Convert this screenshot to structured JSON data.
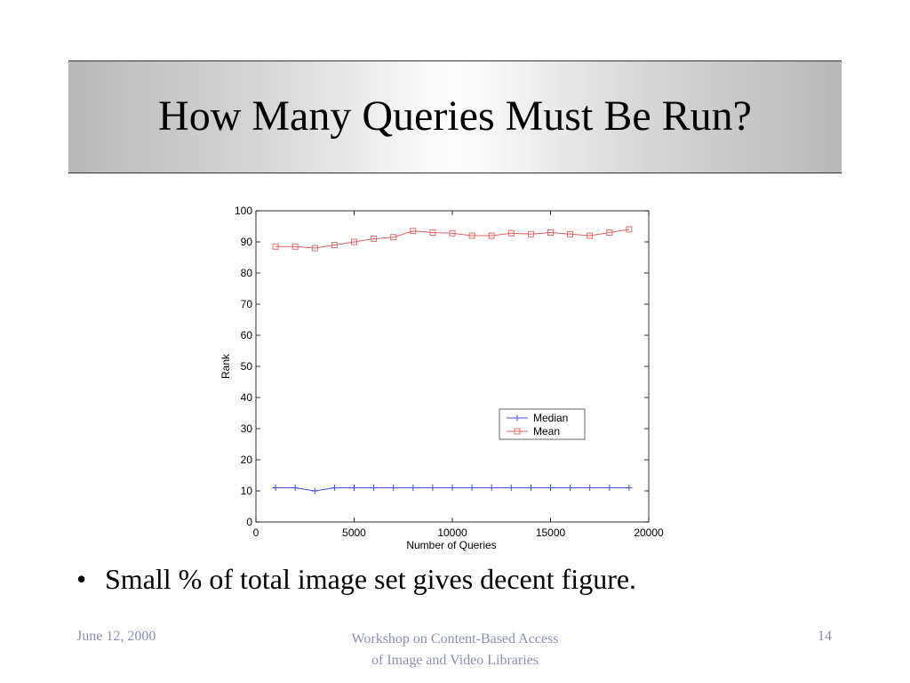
{
  "slide": {
    "title": "How Many Queries Must Be Run?",
    "bullet_symbol": "•",
    "bullet_text": "Small % of total image set gives decent figure.",
    "footer_date": "June 12, 2000",
    "footer_center_line1": "Workshop on Content-Based Access",
    "footer_center_line2": "of Image and Video Libraries",
    "page_number": "14"
  },
  "chart_data": {
    "type": "line",
    "xlabel": "Number of Queries",
    "ylabel": "Rank",
    "xlim": [
      0,
      20000
    ],
    "ylim": [
      0,
      100
    ],
    "x_ticks": [
      0,
      5000,
      10000,
      15000,
      20000
    ],
    "y_ticks": [
      0,
      10,
      20,
      30,
      40,
      50,
      60,
      70,
      80,
      90,
      100
    ],
    "grid": false,
    "legend_position": "center-right",
    "x": [
      1000,
      2000,
      3000,
      4000,
      5000,
      6000,
      7000,
      8000,
      9000,
      10000,
      11000,
      12000,
      13000,
      14000,
      15000,
      16000,
      17000,
      18000,
      19000
    ],
    "series": [
      {
        "name": "Median",
        "color": "#3b4fe0",
        "marker": "star",
        "values": [
          11,
          11,
          10,
          11,
          11,
          11,
          11,
          11,
          11,
          11,
          11,
          11,
          11,
          11,
          11,
          11,
          11,
          11,
          11
        ]
      },
      {
        "name": "Mean",
        "color": "#e0605f",
        "marker": "square",
        "values": [
          88.5,
          88.5,
          88,
          89,
          90,
          91,
          91.5,
          93.5,
          93,
          92.8,
          92,
          92,
          92.8,
          92.5,
          93,
          92.5,
          92,
          93,
          94
        ]
      }
    ]
  }
}
